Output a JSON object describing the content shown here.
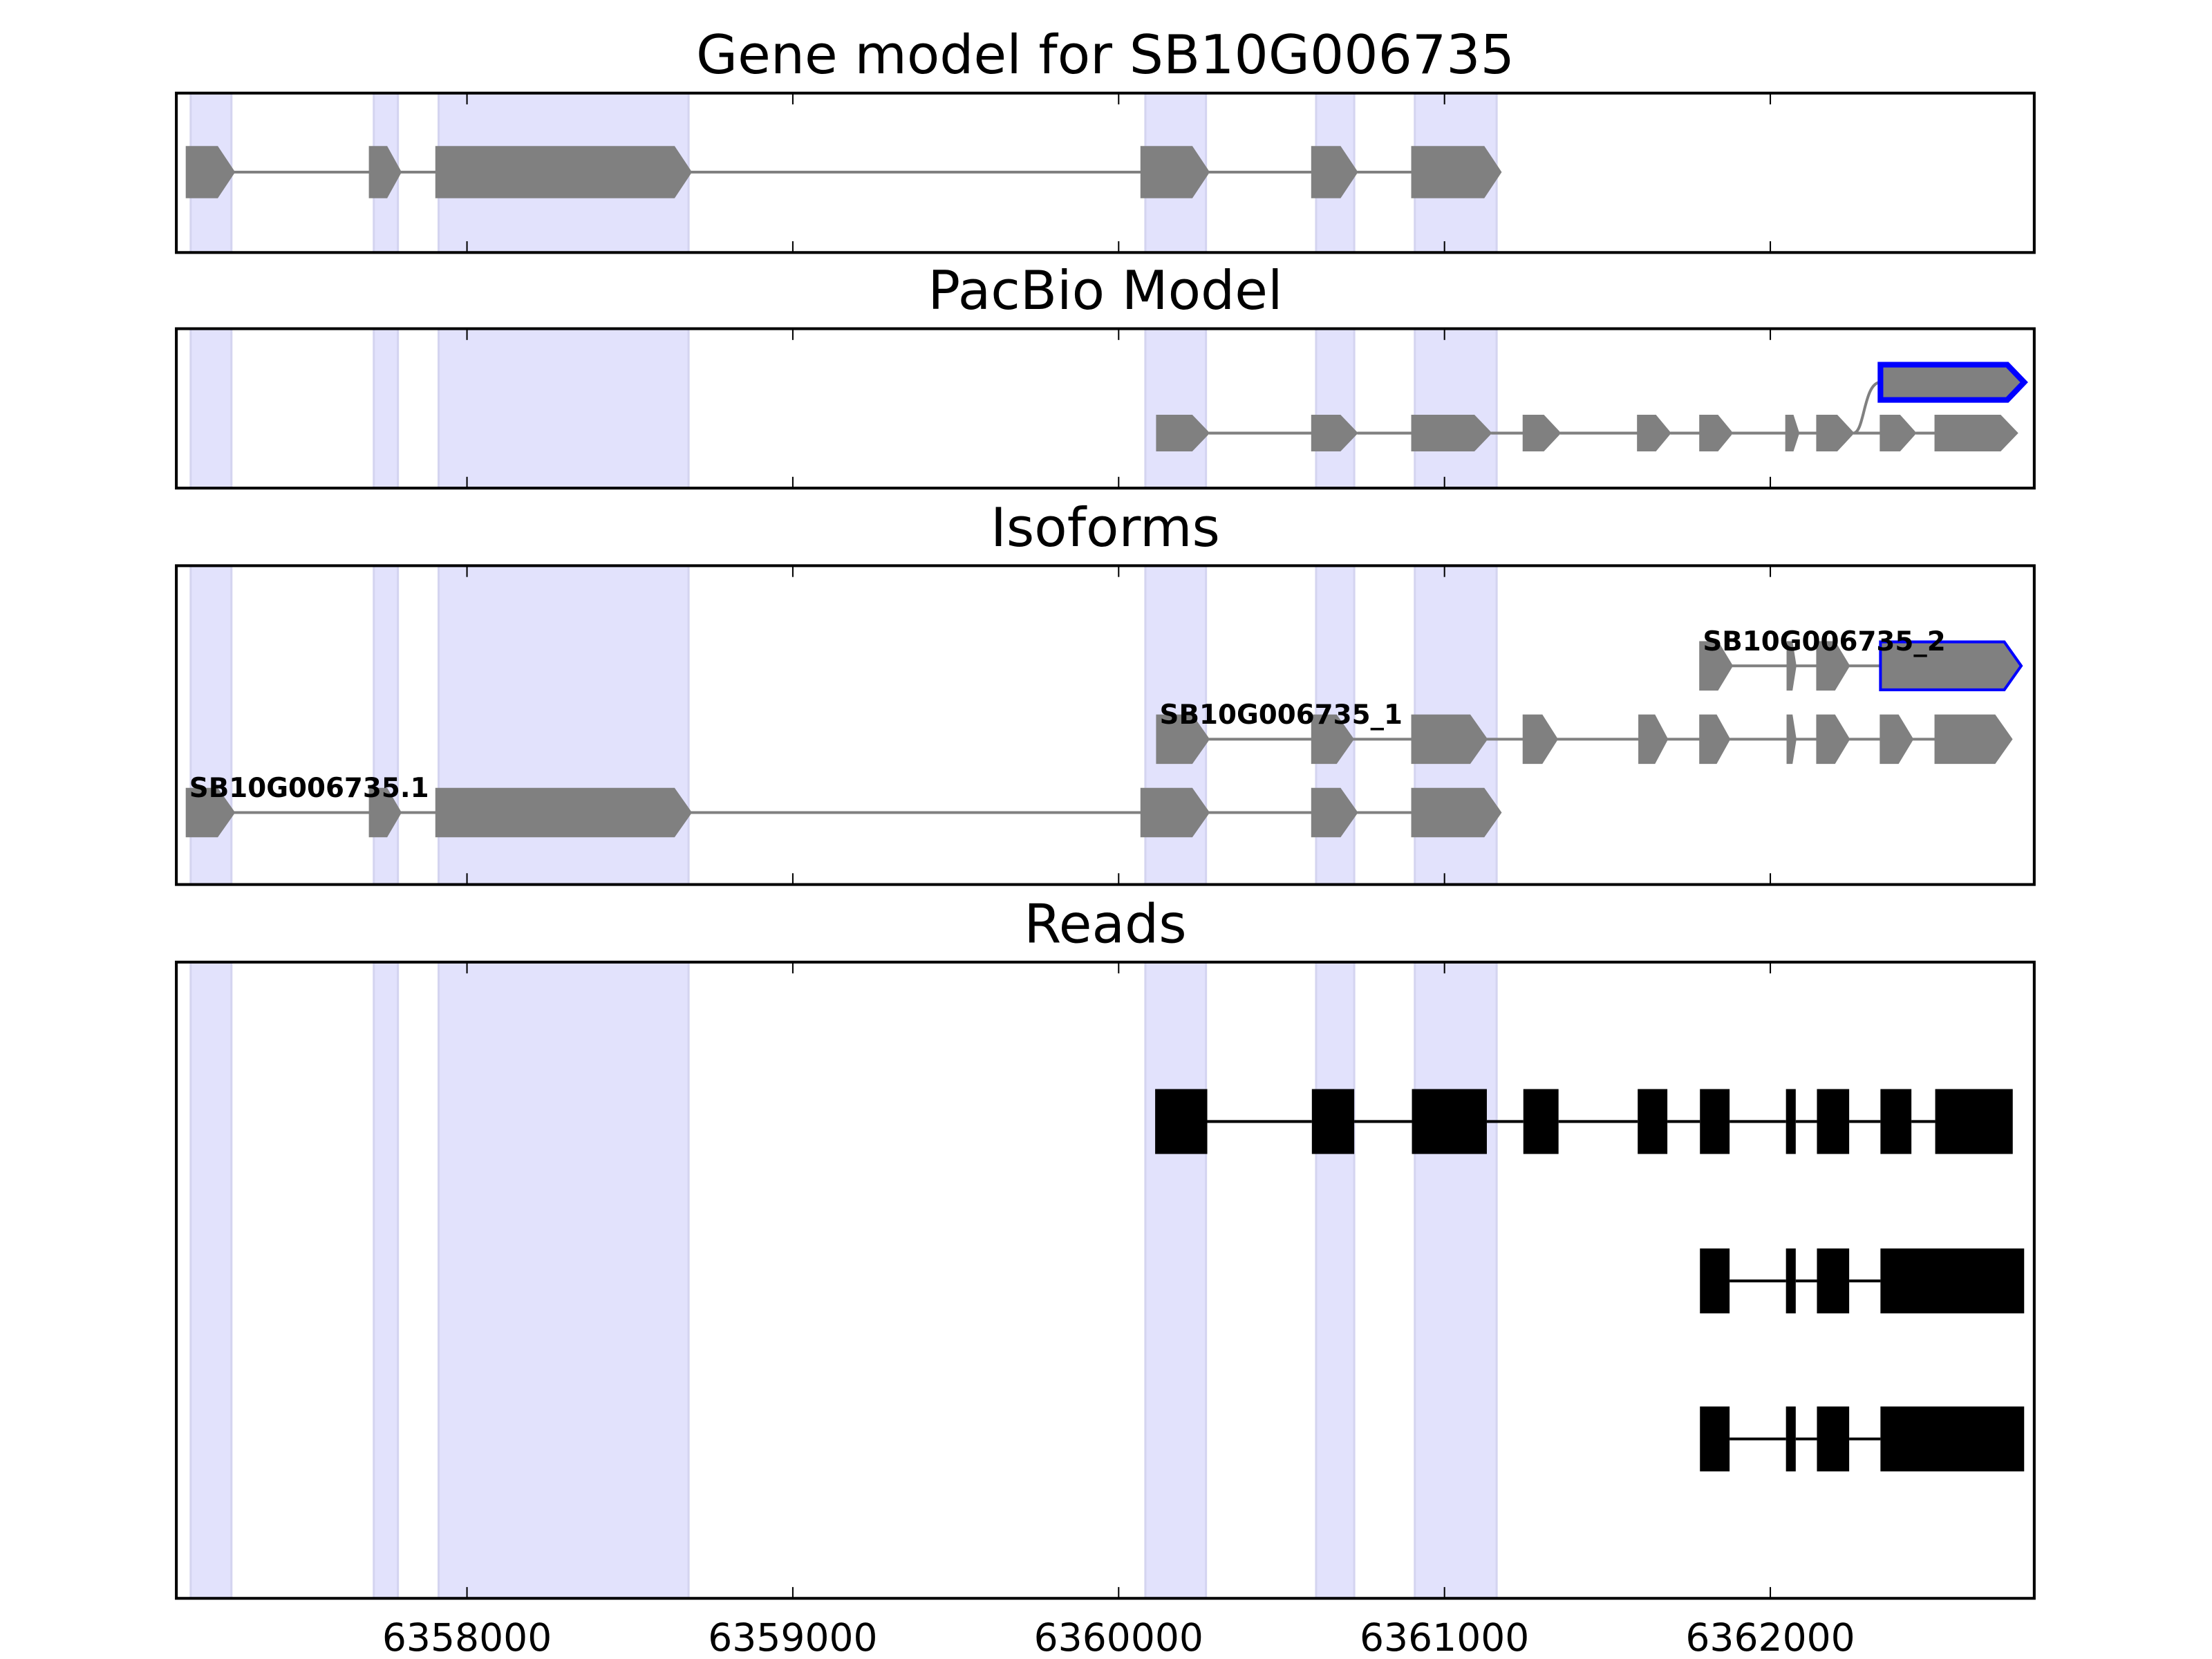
{
  "chart_data": {
    "type": "gene-track",
    "xlim": [
      6357108,
      6362810
    ],
    "x_ticks": [
      6358000,
      6359000,
      6360000,
      6361000,
      6362000
    ],
    "x_tick_labels": [
      "6358000",
      "6359000",
      "6360000",
      "6361000",
      "6362000"
    ],
    "colors": {
      "shade": "#e2e2fc",
      "exon": "#808080",
      "highlight": "#0000ff",
      "read": "#000000"
    },
    "shaded_regions": [
      [
        6357152,
        6357277
      ],
      [
        6357714,
        6357788
      ],
      [
        6357913,
        6358680
      ],
      [
        6360082,
        6360268
      ],
      [
        6360606,
        6360723
      ],
      [
        6360909,
        6361160
      ]
    ],
    "panels": [
      {
        "title": "Gene model for SB10G006735",
        "type": "gene",
        "rows": [
          {
            "exons": [
              [
                6357139,
                6357286
              ],
              [
                6357701,
                6357797
              ],
              [
                6357905,
                6358688
              ],
              [
                6360069,
                6360277
              ],
              [
                6360593,
                6360732
              ],
              [
                6360900,
                6361173
              ]
            ]
          }
        ]
      },
      {
        "title": "PacBio Model",
        "type": "gene",
        "rows": [
          {
            "exons": [
              [
                6360117,
                6360277
              ],
              [
                6360593,
                6360732
              ],
              [
                6360900,
                6361143
              ],
              [
                6361242,
                6361355
              ],
              [
                6361593,
                6361693
              ],
              [
                6361784,
                6361883
              ],
              [
                6362048,
                6362087
              ],
              [
                6362143,
                6362255
              ],
              [
                6362338,
                6362446
              ],
              [
                6362506,
                6362758
              ]
            ]
          },
          {
            "exons": [
              [
                6362338,
                6362779
              ]
            ],
            "highlight": [
              0
            ],
            "branch_from": [
              6362255,
              0
            ]
          }
        ]
      },
      {
        "title": "Isoforms",
        "type": "gene",
        "rows": [
          {
            "label": "SB10G006735.1",
            "exons": [
              [
                6357139,
                6357286
              ],
              [
                6357701,
                6357797
              ],
              [
                6357905,
                6358688
              ],
              [
                6360069,
                6360277
              ],
              [
                6360593,
                6360732
              ],
              [
                6360900,
                6361173
              ]
            ]
          },
          {
            "label": "SB10G006735_1",
            "exons": [
              [
                6360117,
                6360277
              ],
              [
                6360593,
                6360720
              ],
              [
                6360900,
                6361130
              ],
              [
                6361242,
                6361346
              ],
              [
                6361597,
                6361684
              ],
              [
                6361784,
                6361875
              ],
              [
                6362052,
                6362078
              ],
              [
                6362143,
                6362242
              ],
              [
                6362338,
                6362437
              ],
              [
                6362506,
                6362741
              ]
            ]
          },
          {
            "label": "SB10G006735_2",
            "exons": [
              [
                6361784,
                6361883
              ],
              [
                6362052,
                6362078
              ],
              [
                6362143,
                6362242
              ],
              [
                6362338,
                6362770
              ]
            ],
            "highlight": [
              3
            ]
          }
        ]
      },
      {
        "title": "Reads",
        "type": "reads",
        "rows": [
          {
            "exons": [
              [
                6360112,
                6360272
              ],
              [
                6360593,
                6360723
              ],
              [
                6360900,
                6361130
              ],
              [
                6361242,
                6361350
              ],
              [
                6361593,
                6361684
              ],
              [
                6361784,
                6361875
              ],
              [
                6362048,
                6362078
              ],
              [
                6362143,
                6362242
              ],
              [
                6362338,
                6362433
              ],
              [
                6362506,
                6362744
              ]
            ]
          },
          {
            "exons": [
              [
                6361784,
                6361875
              ],
              [
                6362048,
                6362078
              ],
              [
                6362143,
                6362242
              ],
              [
                6362338,
                6362779
              ]
            ]
          },
          {
            "exons": [
              [
                6361784,
                6361875
              ],
              [
                6362048,
                6362078
              ],
              [
                6362143,
                6362242
              ],
              [
                6362338,
                6362779
              ]
            ]
          }
        ]
      }
    ]
  }
}
